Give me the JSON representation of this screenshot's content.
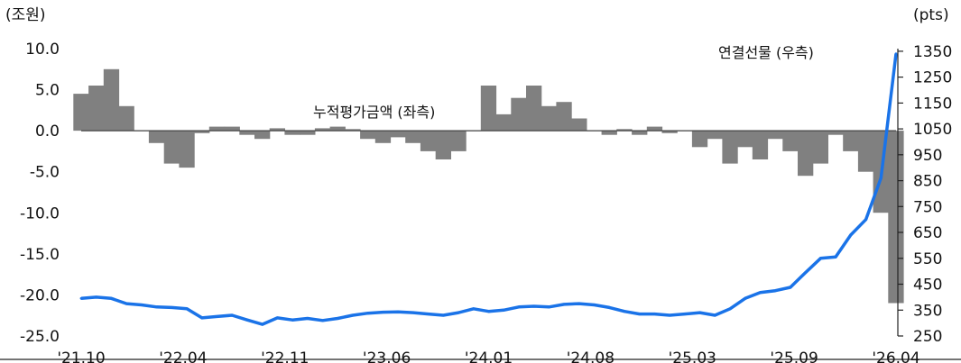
{
  "chart_data": {
    "type": "area+line",
    "left_unit": "(조원)",
    "right_unit": "(pts)",
    "left_ticks": [
      "10.0",
      "5.0",
      "0.0",
      "-5.0",
      "-10.0",
      "-15.0",
      "-20.0",
      "-25.0"
    ],
    "left_ylim": [
      -25,
      10
    ],
    "right_ticks": [
      "1350",
      "1250",
      "1150",
      "1050",
      "950",
      "850",
      "750",
      "650",
      "550",
      "450",
      "350",
      "250"
    ],
    "right_ylim": [
      250,
      1360
    ],
    "x_ticks": [
      "'21.10",
      "'22.04",
      "'22.11",
      "'23.06",
      "'24.01",
      "'24.08",
      "'25.03",
      "'25.09",
      "'26.04"
    ],
    "grid": false,
    "series": [
      {
        "name": "누적평가금액 (좌측)",
        "type": "area",
        "axis": "left",
        "color": "#808080",
        "x": [
          "'21.10",
          "'21.11",
          "'21.12",
          "'22.01",
          "'22.02",
          "'22.03",
          "'22.04",
          "'22.05",
          "'22.06",
          "'22.07",
          "'22.08",
          "'22.09",
          "'22.10",
          "'22.11",
          "'22.12",
          "'23.01",
          "'23.02",
          "'23.03",
          "'23.04",
          "'23.05",
          "'23.06",
          "'23.07",
          "'23.08",
          "'23.09",
          "'23.10",
          "'23.11",
          "'23.12",
          "'24.01",
          "'24.02",
          "'24.03",
          "'24.04",
          "'24.05",
          "'24.06",
          "'24.07",
          "'24.08",
          "'24.09",
          "'24.10",
          "'24.11",
          "'24.12",
          "'25.01",
          "'25.02",
          "'25.03",
          "'25.04",
          "'25.05",
          "'25.06",
          "'25.07",
          "'25.08",
          "'25.09",
          "'25.10",
          "'25.11",
          "'25.12",
          "'26.01",
          "'26.02",
          "'26.03",
          "'26.04"
        ],
        "values": [
          4.5,
          5.5,
          7.5,
          3.0,
          0.0,
          -1.5,
          -4.0,
          -4.5,
          -0.3,
          0.5,
          0.5,
          -0.5,
          -1.0,
          0.3,
          -0.5,
          -0.5,
          0.3,
          0.5,
          0.2,
          -1.0,
          -1.5,
          -0.8,
          -1.5,
          -2.5,
          -3.5,
          -2.5,
          0.0,
          5.5,
          2.0,
          4.0,
          5.5,
          3.0,
          3.5,
          1.5,
          0.0,
          -0.5,
          0.2,
          -0.5,
          0.5,
          -0.3,
          0.0,
          -2.0,
          -1.0,
          -4.0,
          -2.0,
          -3.5,
          -1.0,
          -2.5,
          -5.5,
          -4.0,
          -0.5,
          -2.5,
          -5.0,
          -10.0,
          -21.0
        ]
      },
      {
        "name": "연결선물 (우측)",
        "type": "line",
        "axis": "right",
        "color": "#1a73e8",
        "x": [
          "'21.10",
          "'21.11",
          "'21.12",
          "'22.01",
          "'22.02",
          "'22.03",
          "'22.04",
          "'22.05",
          "'22.06",
          "'22.07",
          "'22.08",
          "'22.09",
          "'22.10",
          "'22.11",
          "'22.12",
          "'23.01",
          "'23.02",
          "'23.03",
          "'23.04",
          "'23.05",
          "'23.06",
          "'23.07",
          "'23.08",
          "'23.09",
          "'23.10",
          "'23.11",
          "'23.12",
          "'24.01",
          "'24.02",
          "'24.03",
          "'24.04",
          "'24.05",
          "'24.06",
          "'24.07",
          "'24.08",
          "'24.09",
          "'24.10",
          "'24.11",
          "'24.12",
          "'25.01",
          "'25.02",
          "'25.03",
          "'25.04",
          "'25.05",
          "'25.06",
          "'25.07",
          "'25.08",
          "'25.09",
          "'25.10",
          "'25.11",
          "'25.12",
          "'26.01",
          "'26.02",
          "'26.03",
          "'26.04"
        ],
        "values": [
          395,
          400,
          395,
          375,
          370,
          362,
          360,
          355,
          320,
          325,
          330,
          312,
          295,
          320,
          312,
          318,
          310,
          318,
          330,
          338,
          342,
          343,
          340,
          335,
          330,
          340,
          355,
          345,
          350,
          362,
          365,
          362,
          372,
          375,
          370,
          360,
          345,
          335,
          335,
          330,
          335,
          340,
          330,
          355,
          395,
          418,
          425,
          438,
          495,
          550,
          555,
          640,
          700,
          860,
          1340
        ]
      }
    ],
    "annotations": [
      "누적평가금액 (좌측)",
      "연결선물 (우측)"
    ]
  }
}
